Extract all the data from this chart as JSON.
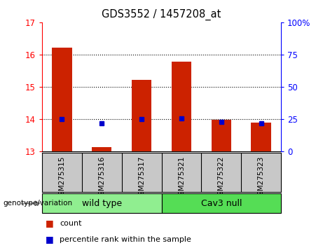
{
  "title": "GDS3552 / 1457208_at",
  "samples": [
    "GSM275315",
    "GSM275316",
    "GSM275317",
    "GSM275321",
    "GSM275322",
    "GSM275323"
  ],
  "red_values": [
    16.22,
    13.12,
    15.22,
    15.78,
    13.97,
    13.88
  ],
  "blue_values": [
    14.0,
    13.87,
    14.0,
    14.02,
    13.92,
    13.87
  ],
  "ylim_left": [
    13,
    17
  ],
  "ylim_right": [
    0,
    100
  ],
  "yticks_left": [
    13,
    14,
    15,
    16,
    17
  ],
  "yticks_right": [
    0,
    25,
    50,
    75,
    100
  ],
  "ytick_right_labels": [
    "0",
    "25",
    "50",
    "75",
    "100%"
  ],
  "group_label": "genotype/variation",
  "bar_color": "#CC2200",
  "dot_color": "#0000CC",
  "bar_bottom": 13,
  "legend_count_label": "count",
  "legend_pct_label": "percentile rank within the sample",
  "bg_plot": "#FFFFFF",
  "bg_xtick": "#C8C8C8",
  "bar_width": 0.5,
  "wild_type_color": "#90EE90",
  "cav3_color": "#55DD55",
  "dotted_lines": [
    14,
    15,
    16
  ]
}
